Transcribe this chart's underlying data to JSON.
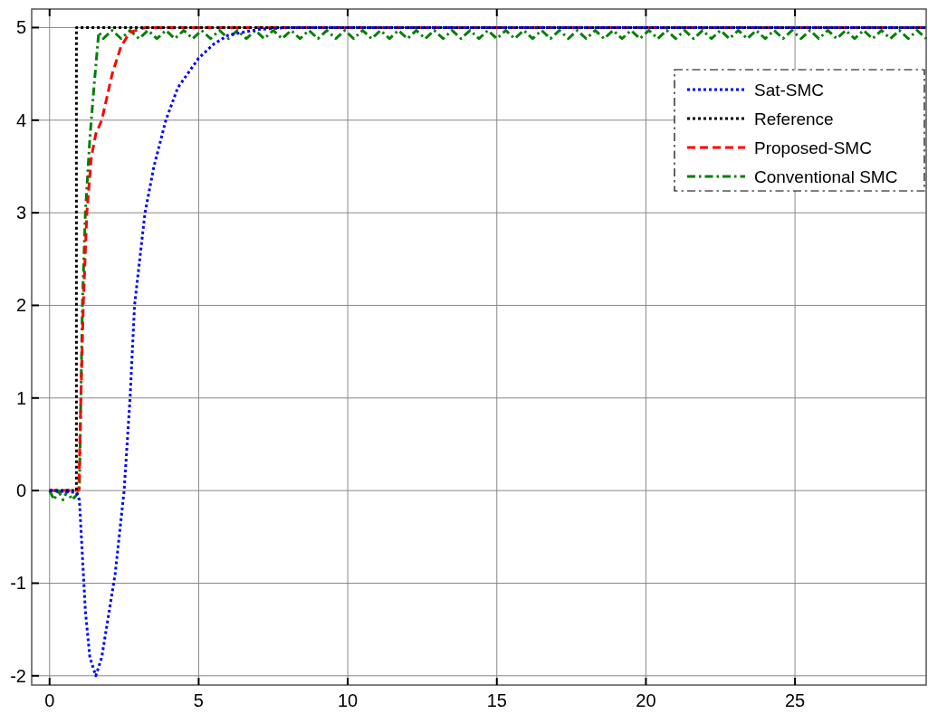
{
  "chart_data": {
    "type": "line",
    "xlim": [
      -0.6,
      29.4
    ],
    "ylim": [
      -2.1,
      5.2
    ],
    "xticks": [
      0,
      5,
      10,
      15,
      20,
      25
    ],
    "yticks": [
      -2,
      -1,
      0,
      1,
      2,
      3,
      4,
      5
    ],
    "grid": true,
    "legend": "top right",
    "series": [
      {
        "name": "Sat-SMC",
        "color": "#0000ff",
        "line_style": "dotted",
        "x": [
          0,
          0.9,
          1.0,
          1.1,
          1.2,
          1.35,
          1.55,
          1.75,
          2.0,
          2.2,
          2.5,
          2.7,
          2.85,
          3.2,
          3.5,
          3.9,
          4.3,
          5,
          5.5,
          6,
          7,
          8,
          29.4
        ],
        "values": [
          0,
          -0.02,
          -0.1,
          -0.7,
          -1.3,
          -1.8,
          -2,
          -1.8,
          -1.3,
          -0.9,
          0,
          1,
          2,
          3,
          3.5,
          4,
          4.35,
          4.67,
          4.82,
          4.92,
          4.98,
          5,
          5
        ]
      },
      {
        "name": "Reference",
        "color": "#000000",
        "line_style": "dotted",
        "x": [
          0,
          0.9,
          0.9,
          29.4
        ],
        "values": [
          0,
          0,
          5,
          5
        ]
      },
      {
        "name": "Proposed-SMC",
        "color": "#ff0000",
        "line_style": "dashed",
        "x": [
          0,
          0.98,
          1.05,
          1.13,
          1.25,
          1.4,
          1.55,
          1.75,
          2.1,
          2.4,
          2.7,
          3.2,
          29.4
        ],
        "values": [
          0,
          0,
          1,
          2,
          3,
          3.6,
          3.85,
          4,
          4.5,
          4.8,
          4.95,
          5,
          5
        ]
      },
      {
        "name": "Conventional SMC",
        "color": "#008000",
        "line_style": "dashdot",
        "x": [
          0,
          0.15,
          0.3,
          0.45,
          0.6,
          0.75,
          0.9,
          1.0,
          1.1,
          1.2,
          1.35,
          1.5,
          1.65,
          1.8,
          2.1,
          2.4,
          2.7,
          3.0,
          3.3,
          3.6,
          3.9,
          4.2,
          4.5,
          4.8,
          5.1,
          5.4,
          5.7,
          6.0,
          6.3,
          6.6,
          6.9,
          7.2,
          7.5,
          7.8,
          8.1,
          8.4,
          8.7,
          9.0,
          9.3,
          9.6,
          9.9,
          10.2,
          10.5,
          10.8,
          11.1,
          11.4,
          11.7,
          12.0,
          12.3,
          12.6,
          12.9,
          13.2,
          13.5,
          13.8,
          14.1,
          14.4,
          14.7,
          15.0,
          15.3,
          15.6,
          15.9,
          16.2,
          16.5,
          16.8,
          17.1,
          17.4,
          17.7,
          18.0,
          18.3,
          18.6,
          18.9,
          19.2,
          19.5,
          19.8,
          20.1,
          20.4,
          20.7,
          21.0,
          21.3,
          21.6,
          21.9,
          22.2,
          22.5,
          22.8,
          23.1,
          23.4,
          23.7,
          24.0,
          24.3,
          24.6,
          24.9,
          25.2,
          25.5,
          25.8,
          26.1,
          26.4,
          26.7,
          27.0,
          27.3,
          27.6,
          27.9,
          28.2,
          28.5,
          28.8,
          29.1,
          29.4
        ],
        "values": [
          0,
          -0.1,
          0,
          -0.1,
          0,
          -0.1,
          -0.05,
          0,
          2,
          3,
          3.8,
          4.4,
          4.95,
          4.88,
          4.97,
          4.88,
          4.97,
          4.88,
          4.97,
          4.88,
          4.97,
          4.88,
          4.97,
          4.88,
          4.97,
          4.88,
          4.97,
          4.88,
          4.97,
          4.88,
          4.97,
          4.88,
          4.97,
          4.88,
          4.97,
          4.88,
          4.97,
          4.88,
          4.97,
          4.88,
          4.97,
          4.88,
          4.97,
          4.88,
          4.97,
          4.88,
          4.97,
          4.88,
          4.97,
          4.88,
          4.97,
          4.88,
          4.97,
          4.88,
          4.97,
          4.88,
          4.97,
          4.88,
          4.97,
          4.88,
          4.97,
          4.88,
          4.97,
          4.88,
          4.97,
          4.88,
          4.97,
          4.88,
          4.97,
          4.88,
          4.97,
          4.88,
          4.97,
          4.88,
          4.97,
          4.88,
          4.97,
          4.88,
          4.97,
          4.88,
          4.97,
          4.88,
          4.97,
          4.88,
          4.97,
          4.88,
          4.97,
          4.88,
          4.97,
          4.88,
          4.97,
          4.88,
          4.97,
          4.88,
          4.97,
          4.88,
          4.97,
          4.88,
          4.97,
          4.88,
          4.97,
          4.88,
          4.97,
          4.88,
          4.97,
          4.88
        ]
      }
    ]
  }
}
